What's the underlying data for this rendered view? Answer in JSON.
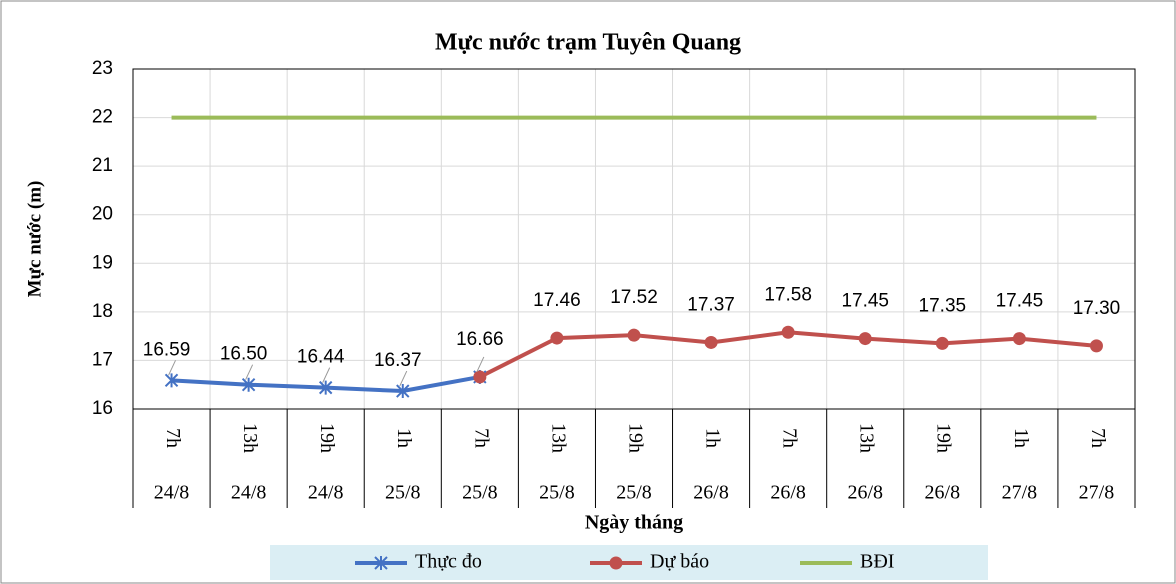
{
  "chart_data": {
    "type": "line",
    "title": "Mực nước trạm Tuyên Quang",
    "y_label": "Mực nước (m)",
    "x_label": "Ngày tháng",
    "categories": [
      "7h",
      "13h",
      "19h",
      "1h",
      "7h",
      "13h",
      "19h",
      "1h",
      "7h",
      "13h",
      "19h",
      "1h",
      "7h"
    ],
    "dates": [
      "24/8",
      "24/8",
      "24/8",
      "25/8",
      "25/8",
      "25/8",
      "25/8",
      "26/8",
      "26/8",
      "26/8",
      "26/8",
      "27/8",
      "27/8"
    ],
    "series": [
      {
        "name": "Thực đo",
        "color": "#4472c4",
        "marker": "asterisk",
        "values": [
          16.59,
          16.5,
          16.44,
          16.37,
          16.66,
          null,
          null,
          null,
          null,
          null,
          null,
          null,
          null
        ],
        "value_labels": [
          "16.59",
          "16.50",
          "16.44",
          "16.37",
          null,
          null,
          null,
          null,
          null,
          null,
          null,
          null,
          null
        ]
      },
      {
        "name": "Dự báo",
        "color": "#c0504d",
        "marker": "circle",
        "values": [
          null,
          null,
          null,
          null,
          16.66,
          17.46,
          17.52,
          17.37,
          17.58,
          17.45,
          17.35,
          17.45,
          17.3
        ],
        "value_labels": [
          null,
          null,
          null,
          null,
          "16.66",
          "17.46",
          "17.52",
          "17.37",
          "17.58",
          "17.45",
          "17.35",
          "17.45",
          "17.30"
        ]
      },
      {
        "name": "BĐI",
        "color": "#9bbb59",
        "marker": "none",
        "values": [
          22,
          22,
          22,
          22,
          22,
          22,
          22,
          22,
          22,
          22,
          22,
          22,
          22
        ]
      }
    ],
    "ylim": [
      16,
      23
    ],
    "yticks": [
      16,
      17,
      18,
      19,
      20,
      21,
      22,
      23
    ],
    "grid": true,
    "legend": "bottom"
  }
}
